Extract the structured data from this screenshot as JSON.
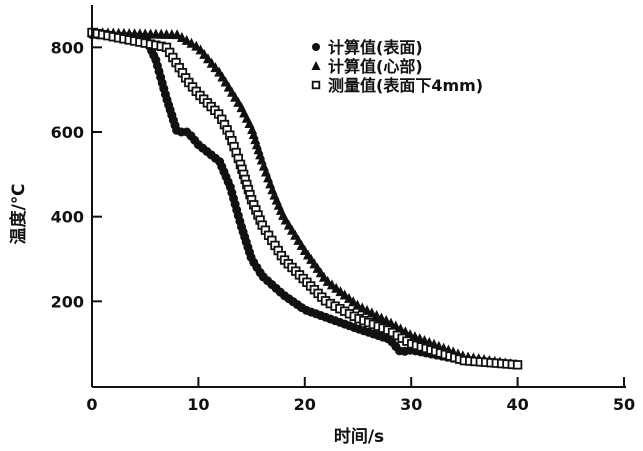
{
  "chart_data": {
    "type": "scatter",
    "title": "",
    "xlabel": "时间/s",
    "ylabel": "温度/℃",
    "xlim": [
      0,
      50
    ],
    "ylim": [
      0,
      900
    ],
    "xticks": [
      0,
      10,
      20,
      30,
      40,
      50
    ],
    "yticks": [
      200,
      400,
      600,
      800
    ],
    "grid": false,
    "legend_position": "top-right",
    "series": [
      {
        "name": "计算值(表面)",
        "marker": "circle",
        "x": [
          0,
          5,
          6,
          7,
          7.5,
          8,
          9,
          10,
          12,
          13,
          14,
          15,
          16,
          18,
          20,
          25,
          28,
          29,
          30,
          35,
          40
        ],
        "y": [
          830,
          825,
          770,
          680,
          640,
          600,
          600,
          570,
          530,
          470,
          380,
          300,
          260,
          215,
          180,
          135,
          110,
          80,
          85,
          60,
          50
        ]
      },
      {
        "name": "计算值(心部)",
        "marker": "triangle",
        "x": [
          0,
          8,
          10,
          12,
          14,
          15,
          16,
          17,
          18,
          20,
          22,
          25,
          28,
          30,
          35,
          40
        ],
        "y": [
          835,
          830,
          800,
          740,
          660,
          610,
          530,
          460,
          400,
          320,
          250,
          190,
          150,
          120,
          70,
          50
        ]
      },
      {
        "name": "测量值(表面下4mm)",
        "marker": "open-square",
        "x": [
          0,
          7,
          8,
          9,
          10,
          12,
          13,
          14,
          15,
          16,
          17,
          18,
          20,
          22,
          25,
          28,
          30,
          35,
          40
        ],
        "y": [
          835,
          800,
          760,
          720,
          690,
          640,
          590,
          520,
          440,
          380,
          340,
          300,
          250,
          200,
          160,
          130,
          100,
          60,
          50
        ]
      }
    ]
  }
}
